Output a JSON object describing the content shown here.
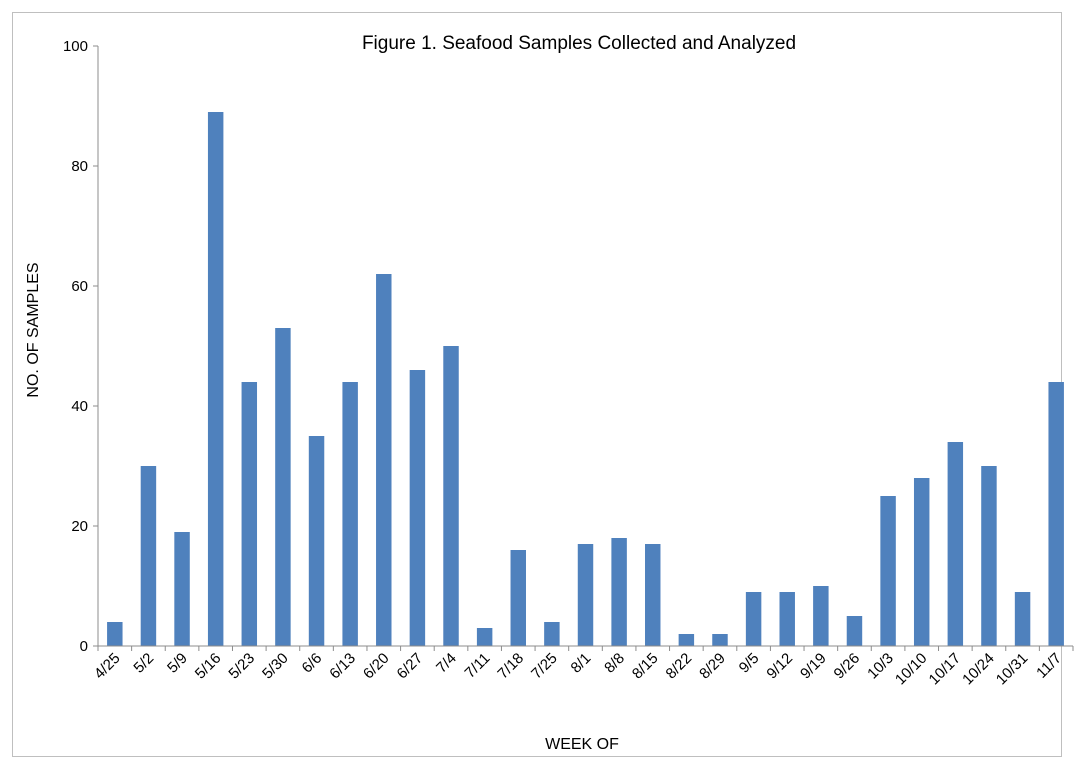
{
  "chart_data": {
    "type": "bar",
    "title": "Figure 1. Seafood Samples Collected and Analyzed",
    "xlabel": "WEEK OF",
    "ylabel": "NO. OF SAMPLES",
    "ylim": [
      0,
      100
    ],
    "yticks": [
      0,
      20,
      40,
      60,
      80,
      100
    ],
    "grid": false,
    "legend": "none",
    "color": "#4f81bd",
    "categories": [
      "4/25",
      "5/2",
      "5/9",
      "5/16",
      "5/23",
      "5/30",
      "6/6",
      "6/13",
      "6/20",
      "6/27",
      "7/4",
      "7/11",
      "7/18",
      "7/25",
      "8/1",
      "8/8",
      "8/15",
      "8/22",
      "8/29",
      "9/5",
      "9/12",
      "9/19",
      "9/26",
      "10/3",
      "10/10",
      "10/17",
      "10/24",
      "10/31",
      "11/7"
    ],
    "values": [
      4,
      30,
      19,
      89,
      44,
      53,
      35,
      44,
      62,
      46,
      50,
      3,
      16,
      4,
      17,
      18,
      17,
      2,
      2,
      9,
      9,
      10,
      5,
      25,
      28,
      34,
      30,
      9,
      44
    ]
  }
}
